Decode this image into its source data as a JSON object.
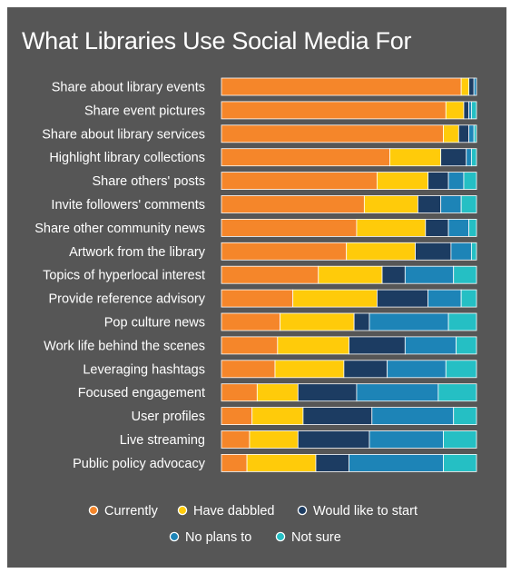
{
  "chart_data": {
    "type": "bar",
    "orientation": "horizontal",
    "stacked": true,
    "percent_stacked": true,
    "title": "What Libraries Use Social Media For",
    "categories": [
      "Share about library events",
      "Share event pictures",
      "Share about library services",
      "Highlight library collections",
      "Share others' posts",
      "Invite followers' comments",
      "Share other community news",
      "Artwork from the library",
      "Topics of hyperlocal interest",
      "Provide reference advisory",
      "Pop culture news",
      "Work life behind the scenes",
      "Leveraging hashtags",
      "Focused engagement",
      "User profiles",
      "Live streaming",
      "Public policy advocacy"
    ],
    "series": [
      {
        "name": "Currently",
        "color": "#f5862a",
        "values": [
          94,
          88,
          87,
          66,
          61,
          56,
          53,
          49,
          38,
          28,
          23,
          22,
          21,
          14,
          12,
          11,
          10
        ]
      },
      {
        "name": "Have dabbled",
        "color": "#ffcb0a",
        "values": [
          3,
          7,
          6,
          20,
          20,
          21,
          27,
          27,
          25,
          33,
          29,
          28,
          27,
          16,
          20,
          19,
          27
        ]
      },
      {
        "name": "Would like to start",
        "color": "#1c3c62",
        "values": [
          2,
          2,
          4,
          10,
          8,
          9,
          9,
          14,
          9,
          20,
          6,
          22,
          17,
          23,
          27,
          28,
          13
        ]
      },
      {
        "name": "No plans to",
        "color": "#1d84b7",
        "values": [
          1,
          1,
          2,
          2,
          6,
          8,
          8,
          8,
          19,
          13,
          31,
          20,
          23,
          32,
          32,
          29,
          37
        ]
      },
      {
        "name": "Not sure",
        "color": "#25bfc4",
        "values": [
          0,
          2,
          1,
          2,
          5,
          6,
          3,
          2,
          9,
          6,
          11,
          8,
          12,
          15,
          9,
          13,
          13
        ]
      }
    ],
    "xlim": [
      0,
      100
    ],
    "legend_position": "bottom",
    "grid": false
  }
}
